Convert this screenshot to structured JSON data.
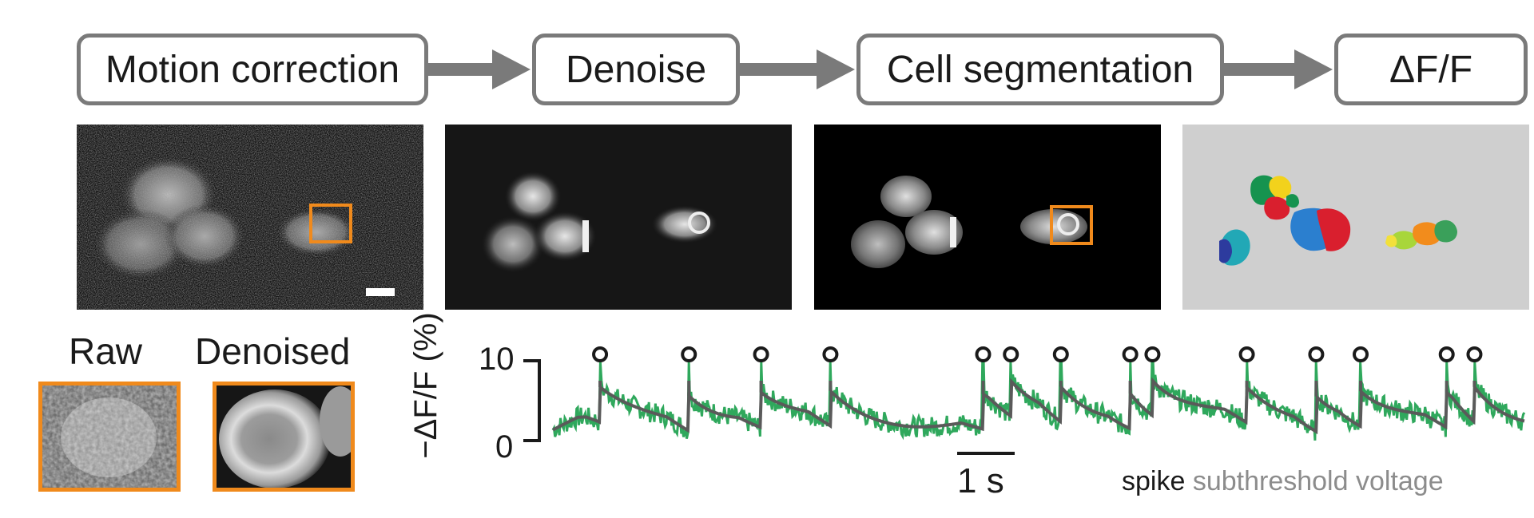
{
  "pipeline": {
    "steps": [
      {
        "label": "Motion correction"
      },
      {
        "label": "Denoise"
      },
      {
        "label": "Cell segmentation"
      },
      {
        "label": "ΔF/F"
      }
    ]
  },
  "insets": {
    "raw_label": "Raw",
    "denoised_label": "Denoised"
  },
  "colors": {
    "box_border": "#7a7a7a",
    "arrow": "#7a7a7a",
    "highlight": "#f08a1c",
    "trace_raw": "#2fa85c",
    "trace_smooth": "#5a5a5a",
    "segmentation_bg": "#cfcfcf"
  },
  "chart_data": {
    "type": "line",
    "ylabel": "−ΔF/F (%)",
    "yticks": [
      "0",
      "10"
    ],
    "ylim": [
      0,
      10
    ],
    "scale_bar_label": "1 s",
    "legend": {
      "spike": "spike",
      "subthreshold": "subthreshold voltage"
    },
    "spike_times_s": [
      0.85,
      2.45,
      3.75,
      5.0,
      7.75,
      8.25,
      9.15,
      10.4,
      10.8,
      12.5,
      13.75,
      14.55,
      16.1,
      16.6
    ],
    "duration_s": 17.5,
    "series": [
      {
        "name": "spike",
        "description_values": "spike peaks ~10%"
      },
      {
        "name": "subthreshold voltage",
        "baseline": 2.5
      }
    ]
  }
}
